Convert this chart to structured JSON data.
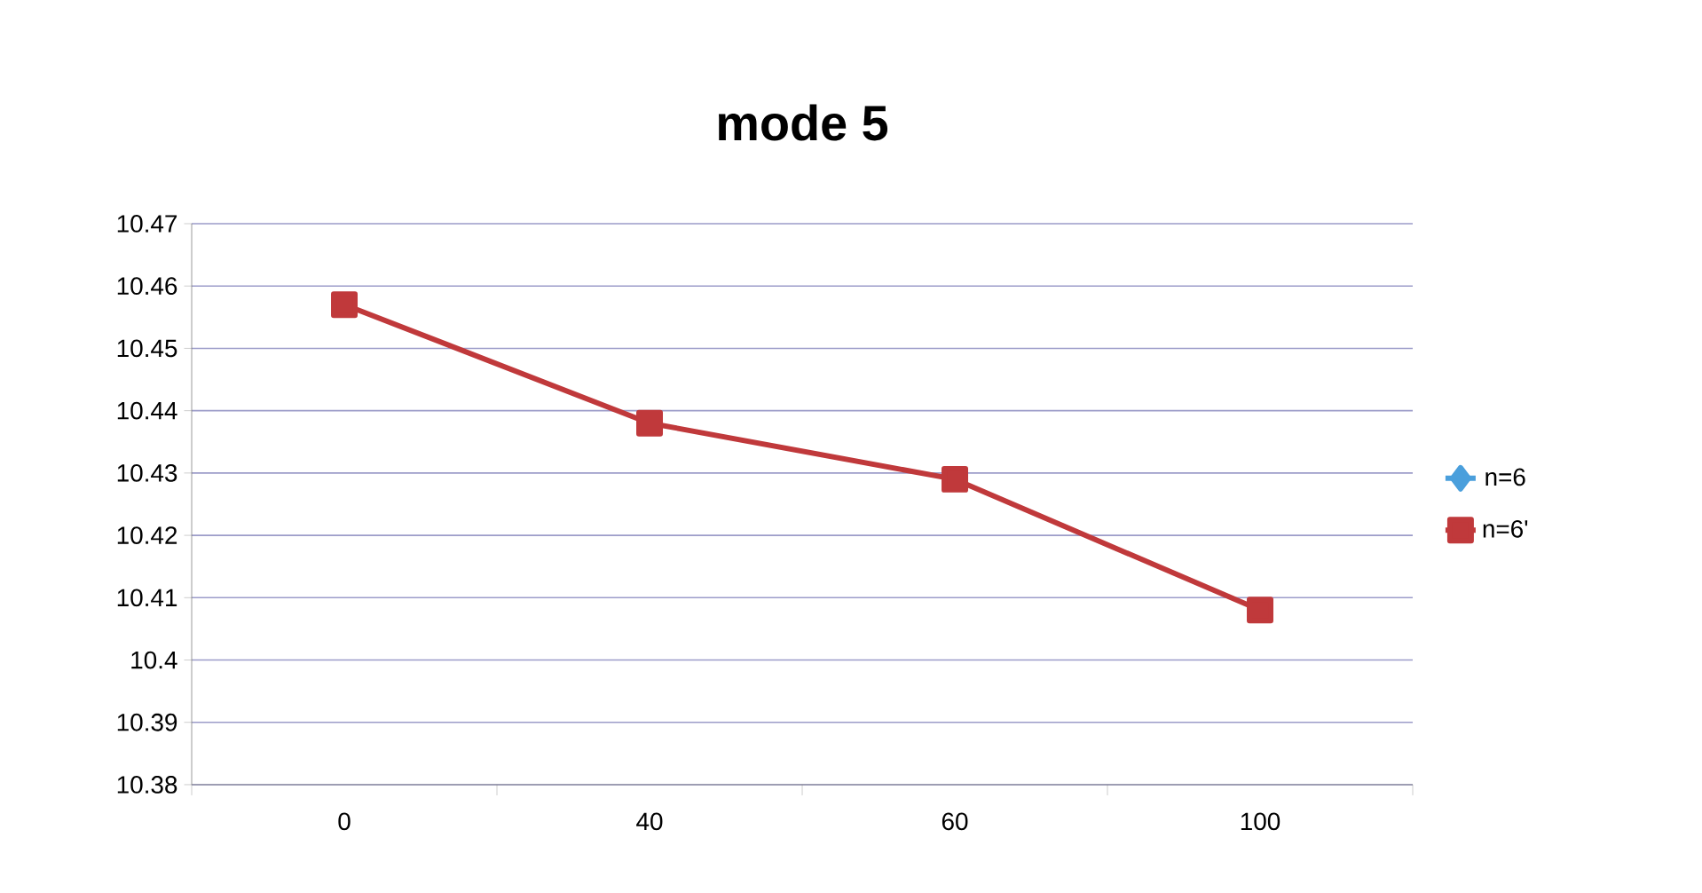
{
  "chart_data": {
    "type": "line",
    "title": "mode 5",
    "categories": [
      "0",
      "40",
      "60",
      "100"
    ],
    "series": [
      {
        "name": "n=6",
        "color": "#4a9fdc",
        "marker": "diamond",
        "values": [
          null,
          null,
          null,
          null
        ]
      },
      {
        "name": "n=6'",
        "color": "#c0393b",
        "marker": "square",
        "values": [
          10.457,
          10.438,
          10.429,
          10.408
        ]
      }
    ],
    "ylim": [
      10.38,
      10.47
    ],
    "yticks": [
      10.38,
      10.39,
      10.4,
      10.41,
      10.42,
      10.43,
      10.44,
      10.45,
      10.46,
      10.47
    ],
    "grid": "y",
    "legend": "right"
  }
}
